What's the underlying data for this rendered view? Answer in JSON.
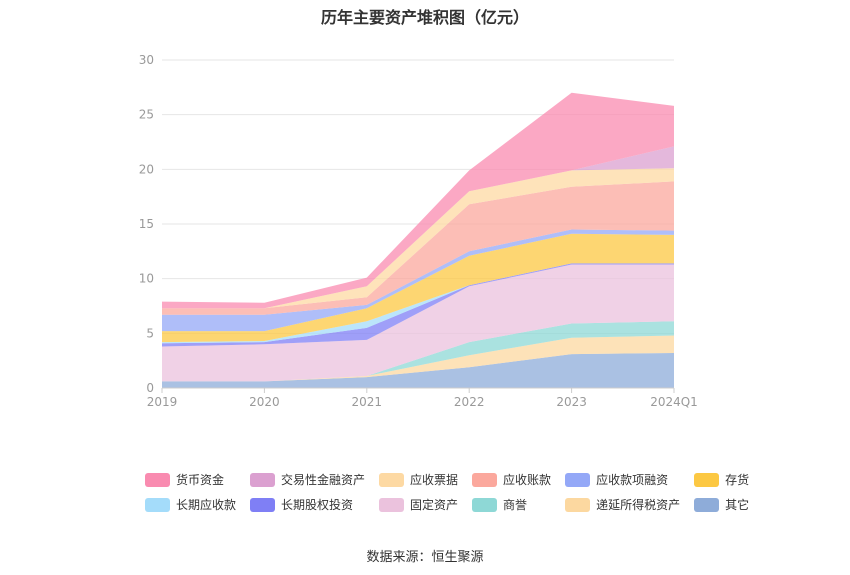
{
  "chart_data": {
    "type": "area",
    "stacked": true,
    "title": "历年主要资产堆积图（亿元）",
    "categories": [
      "2019",
      "2020",
      "2021",
      "2022",
      "2023",
      "2024Q1"
    ],
    "ylim": [
      0,
      30
    ],
    "yticks": [
      0,
      5,
      10,
      15,
      20,
      25,
      30
    ],
    "grid": true,
    "legend_position": "bottom",
    "series": [
      {
        "name": "其它",
        "color": "#8eacd9",
        "values": [
          0.6,
          0.6,
          1.0,
          1.9,
          3.1,
          3.2
        ]
      },
      {
        "name": "递延所得税资产",
        "color": "#fcd8a0",
        "values": [
          0.0,
          0.0,
          0.1,
          1.1,
          1.5,
          1.6
        ]
      },
      {
        "name": "商誉",
        "color": "#8ed8d6",
        "values": [
          0.0,
          0.0,
          0.0,
          1.2,
          1.3,
          1.3
        ]
      },
      {
        "name": "固定资产",
        "color": "#ebc2dd",
        "values": [
          3.2,
          3.4,
          3.3,
          5.1,
          5.4,
          5.2
        ]
      },
      {
        "name": "长期股权投资",
        "color": "#7f7ff5",
        "values": [
          0.3,
          0.2,
          1.1,
          0.1,
          0.1,
          0.1
        ]
      },
      {
        "name": "长期应收款",
        "color": "#a4dcfa",
        "values": [
          0.1,
          0.1,
          0.6,
          0.0,
          0.0,
          0.0
        ]
      },
      {
        "name": "存货",
        "color": "#fcc843",
        "values": [
          1.0,
          0.9,
          1.2,
          2.7,
          2.7,
          2.6
        ]
      },
      {
        "name": "应收款项融资",
        "color": "#94a8f7",
        "values": [
          1.5,
          1.5,
          0.3,
          0.4,
          0.4,
          0.4
        ]
      },
      {
        "name": "应收账款",
        "color": "#fba89d",
        "values": [
          0.6,
          0.6,
          0.7,
          4.3,
          3.9,
          4.5
        ]
      },
      {
        "name": "应收票据",
        "color": "#fdd9a3",
        "values": [
          0.0,
          0.0,
          1.0,
          1.2,
          1.5,
          1.2
        ]
      },
      {
        "name": "交易性金融资产",
        "color": "#dba0d0",
        "values": [
          0.0,
          0.0,
          0.0,
          0.0,
          0.0,
          2.0
        ]
      },
      {
        "name": "货币资金",
        "color": "#f98bb0",
        "values": [
          0.6,
          0.5,
          0.8,
          1.9,
          7.1,
          3.7
        ]
      }
    ],
    "legend_order": [
      "货币资金",
      "交易性金融资产",
      "应收票据",
      "应收账款",
      "应收款项融资",
      "存货",
      "长期应收款",
      "长期股权投资",
      "固定资产",
      "商誉",
      "递延所得税资产",
      "其它"
    ]
  },
  "source_text": "数据来源：恒生聚源"
}
